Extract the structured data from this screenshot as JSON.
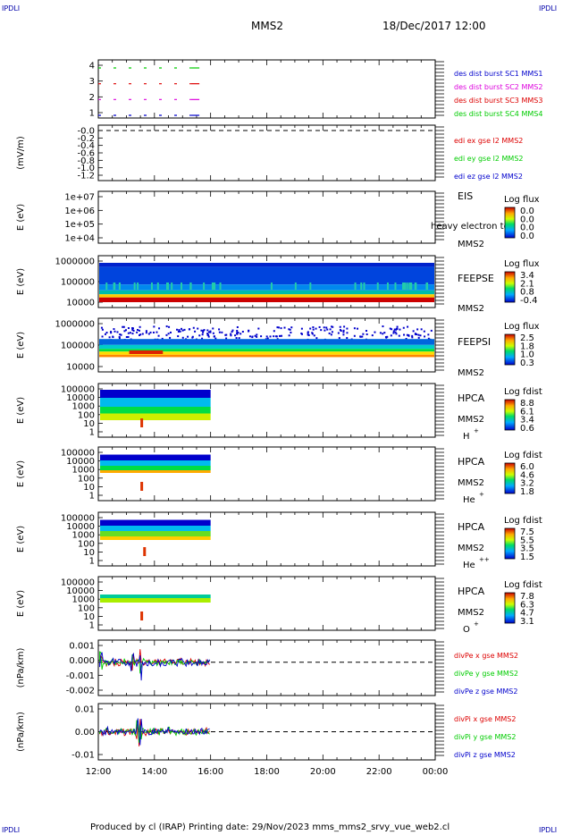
{
  "header": {
    "corner_left": "IPDLI",
    "corner_right": "IPDLI",
    "spacecraft": "MMS2",
    "datetime": "18/Dec/2017 12:00"
  },
  "footer": {
    "corner_left": "IPDLI",
    "corner_right": "IPDLI",
    "credit": "Produced by cl (IRAP)   Printing date: 29/Nov/2023   mms_mms2_srvy_vue_web2.cl"
  },
  "colors": {
    "red": "#dd0000",
    "green": "#00cc00",
    "blue": "#0000cc",
    "magenta": "#dd00dd",
    "dark_red": "#cc0000"
  },
  "chart_data": [
    {
      "id": "des_burst",
      "type": "line",
      "yticks": [
        "4",
        "3",
        "2",
        "1"
      ],
      "legend": [
        {
          "text": "des dist burst SC1 MMS1",
          "color": "#0000cc"
        },
        {
          "text": "des dist burst SC2 MMS2",
          "color": "#dd00dd"
        },
        {
          "text": "des dist burst SC3 MMS3",
          "color": "#dd0000"
        },
        {
          "text": "des dist burst SC4 MMS4",
          "color": "#00cc00"
        }
      ],
      "series": [
        {
          "level": 4,
          "color": "#00cc00",
          "x": [
            12.0,
            15.6
          ]
        },
        {
          "level": 3,
          "color": "#dd0000",
          "x": [
            12.0,
            15.6
          ]
        },
        {
          "level": 2,
          "color": "#dd00dd",
          "x": [
            12.0,
            15.6
          ]
        },
        {
          "level": 1,
          "color": "#0000cc",
          "x": [
            12.0,
            15.6
          ]
        }
      ]
    },
    {
      "id": "edi",
      "type": "line",
      "ylabel": "(mV/m)",
      "yticks": [
        "-0.0",
        "-0.2",
        "-0.4",
        "-0.6",
        "-0.8",
        "-1.0",
        "-1.2"
      ],
      "legend": [
        {
          "text": "edi ex gse l2 MMS2",
          "color": "#dd0000"
        },
        {
          "text": "edi ey gse l2 MMS2",
          "color": "#00cc00"
        },
        {
          "text": "edi ez gse l2 MMS2",
          "color": "#0000cc"
        }
      ]
    },
    {
      "id": "eis",
      "type": "heatmap",
      "ylabel": "E (eV)",
      "yticks": [
        "1e+07",
        "1e+06",
        "1e+05",
        "1e+04"
      ],
      "instrument": "EIS",
      "species": "heavy electron tof",
      "sc": "MMS2",
      "cbar_title": "Log flux",
      "cbar_ticks": [
        "0.0",
        "0.0",
        "0.0",
        "0.0"
      ]
    },
    {
      "id": "feepse",
      "type": "heatmap",
      "ylabel": "E (eV)",
      "yticks": [
        "1000000",
        "100000",
        "10000"
      ],
      "instrument": "FEEPSE",
      "sc": "MMS2",
      "cbar_title": "Log flux",
      "cbar_ticks": [
        "3.4",
        "2.1",
        "0.8",
        "-0.4"
      ]
    },
    {
      "id": "feepsi",
      "type": "heatmap",
      "ylabel": "E (eV)",
      "yticks": [
        "1000000",
        "100000",
        "10000"
      ],
      "instrument": "FEEPSI",
      "sc": "MMS2",
      "cbar_title": "Log flux",
      "cbar_ticks": [
        "2.5",
        "1.8",
        "1.0",
        "0.3"
      ]
    },
    {
      "id": "hpca_h",
      "type": "heatmap",
      "ylabel": "E (eV)",
      "yticks": [
        "100000",
        "10000",
        "1000",
        "100",
        "10",
        "1"
      ],
      "instrument": "HPCA",
      "sc": "MMS2",
      "species": "H",
      "sup": "+",
      "cbar_title": "Log fdist",
      "cbar_ticks": [
        "8.8",
        "6.1",
        "3.4",
        "0.6"
      ]
    },
    {
      "id": "hpca_he",
      "type": "heatmap",
      "ylabel": "E (eV)",
      "yticks": [
        "100000",
        "10000",
        "1000",
        "100",
        "10",
        "1"
      ],
      "instrument": "HPCA",
      "sc": "MMS2",
      "species": "He",
      "sup": "+",
      "cbar_title": "Log fdist",
      "cbar_ticks": [
        "6.0",
        "4.6",
        "3.2",
        "1.8"
      ]
    },
    {
      "id": "hpca_hepp",
      "type": "heatmap",
      "ylabel": "E (eV)",
      "yticks": [
        "100000",
        "10000",
        "1000",
        "100",
        "10",
        "1"
      ],
      "instrument": "HPCA",
      "sc": "MMS2",
      "species": "He",
      "sup": "++",
      "cbar_title": "Log fdist",
      "cbar_ticks": [
        "7.5",
        "5.5",
        "3.5",
        "1.5"
      ]
    },
    {
      "id": "hpca_o",
      "type": "heatmap",
      "ylabel": "E (eV)",
      "yticks": [
        "100000",
        "10000",
        "1000",
        "100",
        "10",
        "1"
      ],
      "instrument": "HPCA",
      "sc": "MMS2",
      "species": "O",
      "sup": "+",
      "cbar_title": "Log fdist",
      "cbar_ticks": [
        "7.8",
        "6.3",
        "4.7",
        "3.1"
      ]
    },
    {
      "id": "divpe",
      "type": "line",
      "ylabel": "(nPa/km)",
      "yticks": [
        "0.001",
        "0.000",
        "-0.001",
        "-0.002"
      ],
      "legend": [
        {
          "text": "divPe x gse MMS2",
          "color": "#dd0000"
        },
        {
          "text": "divPe y gse MMS2",
          "color": "#00cc00"
        },
        {
          "text": "divPe z gse MMS2",
          "color": "#0000cc"
        }
      ]
    },
    {
      "id": "divpi",
      "type": "line",
      "ylabel": "(nPa/km)",
      "yticks": [
        "0.01",
        "0.00",
        "-0.01"
      ],
      "legend": [
        {
          "text": "divPi x gse MMS2",
          "color": "#dd0000"
        },
        {
          "text": "divPi y gse MMS2",
          "color": "#00cc00"
        },
        {
          "text": "divPi z gse MMS2",
          "color": "#0000cc"
        }
      ]
    }
  ],
  "time_axis": {
    "range": [
      12,
      24
    ],
    "ticks": [
      "12:00",
      "14:00",
      "16:00",
      "18:00",
      "20:00",
      "22:00",
      "00:00"
    ]
  }
}
